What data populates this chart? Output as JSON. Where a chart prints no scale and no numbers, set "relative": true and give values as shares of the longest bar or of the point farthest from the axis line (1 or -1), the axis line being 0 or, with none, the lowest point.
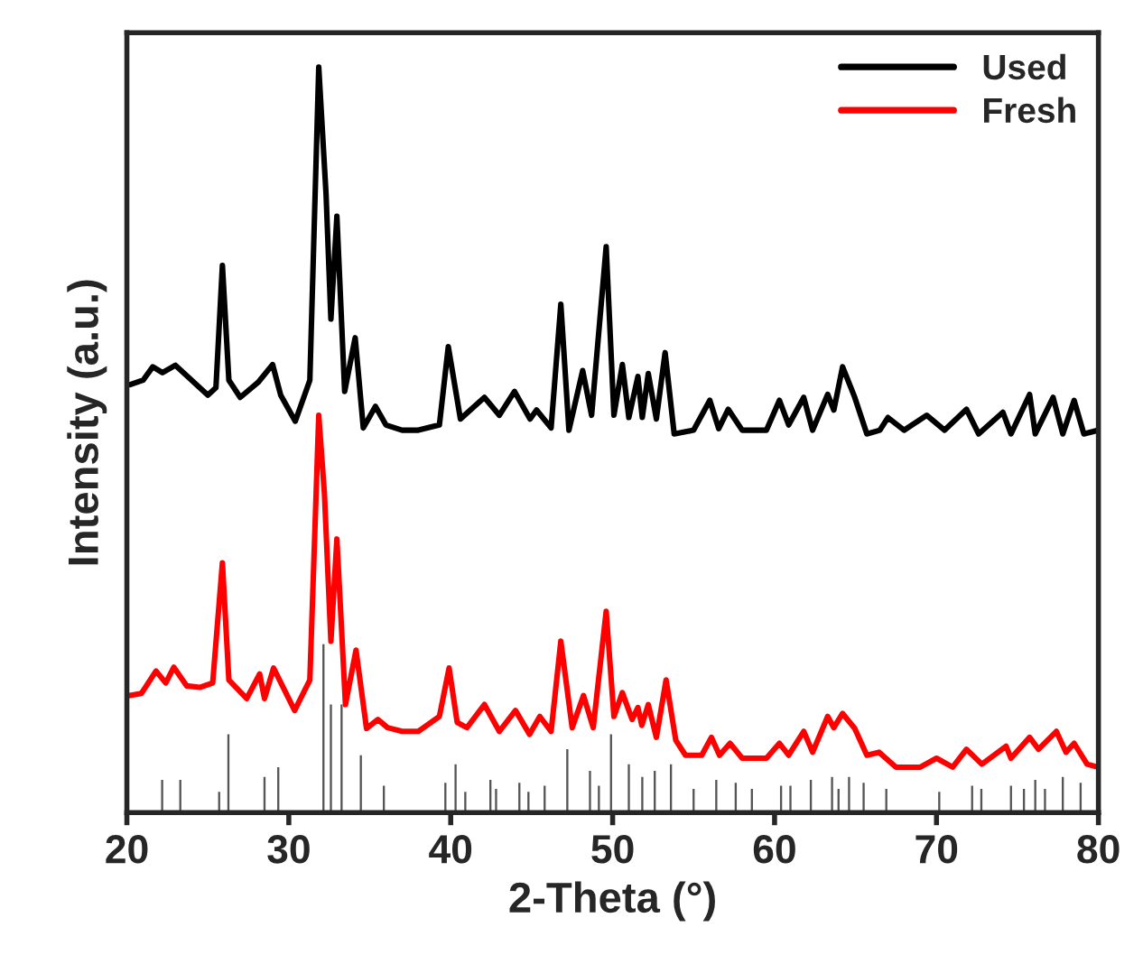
{
  "chart_data": {
    "type": "line",
    "xlabel": "2-Theta (°)",
    "ylabel": "Intensity (a.u.)",
    "relative": true,
    "xlim": [
      20,
      80
    ],
    "xticks": [
      20,
      30,
      40,
      50,
      60,
      70,
      80
    ],
    "tick_labels": "x",
    "legend": "top right",
    "grid": false,
    "series": [
      {
        "name": "Used",
        "color": "#000000",
        "x": [
          20.2,
          21.0,
          21.6,
          22.2,
          23.0,
          24.0,
          24.5,
          25.0,
          25.5,
          25.9,
          26.3,
          27.0,
          28.1,
          29.0,
          29.5,
          30.4,
          31.3,
          31.85,
          32.3,
          32.6,
          32.97,
          33.45,
          34.1,
          34.6,
          35.35,
          36.0,
          37.0,
          38.0,
          39.3,
          39.85,
          40.6,
          42.08,
          43.0,
          43.94,
          44.9,
          45.3,
          46.2,
          46.8,
          47.3,
          48.15,
          48.7,
          49.6,
          50.08,
          50.6,
          51.0,
          51.56,
          51.83,
          52.2,
          52.7,
          53.24,
          53.8,
          55.0,
          56.0,
          56.55,
          57.14,
          58.0,
          59.5,
          60.3,
          60.87,
          61.8,
          62.35,
          63.28,
          63.66,
          64.2,
          64.95,
          65.7,
          66.5,
          67.0,
          68.0,
          69.4,
          70.5,
          71.85,
          72.6,
          74.1,
          74.6,
          75.75,
          76.1,
          77.2,
          77.8,
          78.5,
          79.1,
          80.0
        ],
        "values": [
          0.574,
          0.58,
          0.598,
          0.59,
          0.6,
          0.58,
          0.57,
          0.56,
          0.57,
          0.734,
          0.58,
          0.557,
          0.577,
          0.601,
          0.56,
          0.525,
          0.58,
          1.0,
          0.83,
          0.662,
          0.8,
          0.565,
          0.637,
          0.516,
          0.545,
          0.52,
          0.513,
          0.513,
          0.52,
          0.625,
          0.528,
          0.557,
          0.533,
          0.565,
          0.528,
          0.54,
          0.516,
          0.682,
          0.513,
          0.593,
          0.533,
          0.759,
          0.533,
          0.601,
          0.53,
          0.585,
          0.53,
          0.589,
          0.528,
          0.617,
          0.508,
          0.513,
          0.553,
          0.515,
          0.541,
          0.513,
          0.513,
          0.553,
          0.52,
          0.557,
          0.513,
          0.561,
          0.54,
          0.598,
          0.557,
          0.508,
          0.513,
          0.53,
          0.513,
          0.533,
          0.513,
          0.541,
          0.508,
          0.537,
          0.508,
          0.561,
          0.508,
          0.557,
          0.508,
          0.553,
          0.508,
          0.513
        ]
      },
      {
        "name": "Fresh",
        "color": "#ff0000",
        "x": [
          20.1,
          20.9,
          21.8,
          22.4,
          22.9,
          23.7,
          24.5,
          25.3,
          25.9,
          26.3,
          27.4,
          28.2,
          28.5,
          29.06,
          30.36,
          31.3,
          31.85,
          32.2,
          32.6,
          32.97,
          33.5,
          34.15,
          34.8,
          35.5,
          36.1,
          37.0,
          38.0,
          39.3,
          39.9,
          40.4,
          41.0,
          42.08,
          43.0,
          44.0,
          44.87,
          45.5,
          46.2,
          46.8,
          47.5,
          48.2,
          48.8,
          49.6,
          50.08,
          50.6,
          51.2,
          51.56,
          51.8,
          52.2,
          52.7,
          53.3,
          53.9,
          54.5,
          55.5,
          56.1,
          56.6,
          57.25,
          58.0,
          59.5,
          60.3,
          60.87,
          61.8,
          62.35,
          63.28,
          63.66,
          64.2,
          64.95,
          65.7,
          66.45,
          67.5,
          69.0,
          70.0,
          71.0,
          71.85,
          72.8,
          74.3,
          74.6,
          75.75,
          76.3,
          77.4,
          78.0,
          78.5,
          79.3,
          80.0
        ],
        "values": [
          0.157,
          0.16,
          0.19,
          0.174,
          0.195,
          0.17,
          0.168,
          0.174,
          0.335,
          0.178,
          0.153,
          0.186,
          0.153,
          0.194,
          0.137,
          0.178,
          0.533,
          0.428,
          0.23,
          0.367,
          0.145,
          0.218,
          0.113,
          0.125,
          0.114,
          0.109,
          0.109,
          0.129,
          0.194,
          0.121,
          0.114,
          0.145,
          0.109,
          0.137,
          0.105,
          0.129,
          0.109,
          0.23,
          0.114,
          0.157,
          0.114,
          0.27,
          0.129,
          0.161,
          0.125,
          0.141,
          0.117,
          0.145,
          0.101,
          0.178,
          0.097,
          0.077,
          0.077,
          0.101,
          0.077,
          0.093,
          0.073,
          0.073,
          0.093,
          0.077,
          0.109,
          0.081,
          0.129,
          0.114,
          0.133,
          0.113,
          0.077,
          0.081,
          0.061,
          0.061,
          0.073,
          0.061,
          0.085,
          0.065,
          0.089,
          0.073,
          0.101,
          0.085,
          0.109,
          0.081,
          0.093,
          0.065,
          0.061
        ]
      },
      {
        "color": "#555555",
        "type": "bar",
        "x": [
          22.18,
          23.3,
          25.7,
          26.27,
          28.5,
          29.35,
          32.14,
          32.6,
          33.26,
          34.45,
          35.87,
          39.67,
          40.3,
          40.9,
          42.45,
          42.8,
          44.24,
          44.8,
          45.8,
          47.2,
          48.6,
          49.15,
          49.9,
          51.0,
          51.83,
          52.6,
          53.6,
          55.0,
          56.4,
          57.6,
          58.6,
          60.4,
          60.98,
          62.24,
          63.55,
          63.95,
          64.6,
          65.5,
          66.9,
          70.17,
          72.2,
          72.77,
          74.6,
          75.4,
          76.1,
          76.7,
          77.8,
          78.9
        ],
        "values": [
          0.044,
          0.044,
          0.028,
          0.105,
          0.048,
          0.061,
          0.226,
          0.145,
          0.145,
          0.077,
          0.036,
          0.04,
          0.065,
          0.028,
          0.044,
          0.032,
          0.04,
          0.028,
          0.036,
          0.085,
          0.056,
          0.036,
          0.105,
          0.065,
          0.048,
          0.056,
          0.065,
          0.032,
          0.044,
          0.04,
          0.032,
          0.036,
          0.036,
          0.044,
          0.048,
          0.032,
          0.048,
          0.04,
          0.032,
          0.028,
          0.036,
          0.032,
          0.036,
          0.032,
          0.044,
          0.032,
          0.048,
          0.04
        ]
      }
    ]
  }
}
